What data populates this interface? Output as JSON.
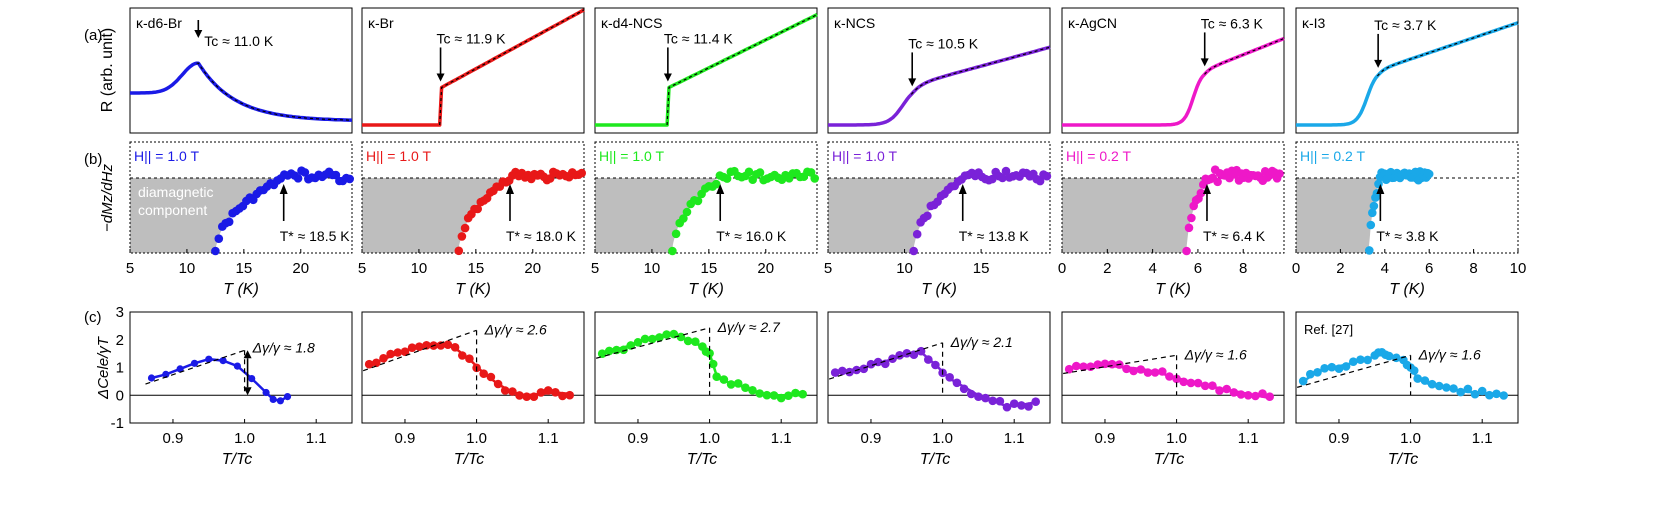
{
  "chart_data": {
    "type": "line",
    "rows": [
      {
        "label": "(a)",
        "ylabel": "R (arb. unit)"
      },
      {
        "label": "(b)",
        "ylabel": "−dMz/dHz"
      },
      {
        "label": "(c)",
        "ylabel": "ΔCele/γT",
        "yticks": [
          "-1",
          "0",
          "1",
          "2",
          "3"
        ],
        "ylim": [
          -1,
          3
        ]
      }
    ],
    "columns": [
      {
        "material": "κ-d6-Br",
        "color": "#1a1ae6",
        "tc_label": "Tc ≈ 11.0 K",
        "tc": 11.0,
        "field_label": "H|| = 1.0 T",
        "tstar_label": "T* ≈ 18.5 K",
        "tstar": 18.5,
        "b_xlim": [
          5,
          24.5
        ],
        "b_xticks": [
          5,
          10,
          15,
          20
        ],
        "b_xtick_labels": [
          "5",
          "10",
          "15",
          "20"
        ],
        "annotation": "diamagnetic component",
        "c_label": "Δγ/γ ≈ 1.8",
        "c_ratio": 1.8,
        "c_x": [
          0.87,
          0.89,
          0.91,
          0.93,
          0.95,
          0.97,
          0.99,
          1.01,
          1.03,
          1.04,
          1.05,
          1.06
        ],
        "c_y": [
          0.62,
          0.75,
          0.95,
          1.15,
          1.3,
          1.25,
          1.05,
          0.6,
          0.1,
          -0.15,
          -0.2,
          -0.05
        ]
      },
      {
        "material": "κ-Br",
        "color": "#e81818",
        "tc_label": "Tc ≈ 11.9 K",
        "tc": 11.9,
        "field_label": "H|| = 1.0 T",
        "tstar_label": "T* ≈ 18.0 K",
        "tstar": 18.0,
        "b_xlim": [
          5,
          24.5
        ],
        "b_xticks": [
          5,
          10,
          15,
          20
        ],
        "b_xtick_labels": [
          "5",
          "10",
          "15",
          "20"
        ],
        "c_label": "Δγ/γ ≈ 2.6",
        "c_ratio": 2.6,
        "c_x": [
          0.85,
          0.87,
          0.89,
          0.91,
          0.93,
          0.95,
          0.97,
          0.99,
          1.01,
          1.03,
          1.05,
          1.07,
          1.09,
          1.11,
          1.13
        ],
        "c_y": [
          1.1,
          1.3,
          1.5,
          1.7,
          1.8,
          1.85,
          1.7,
          1.3,
          0.8,
          0.4,
          0.1,
          0.0,
          0.05,
          0.1,
          0.05
        ]
      },
      {
        "material": "κ-d4-NCS",
        "color": "#1ee81e",
        "tc_label": "Tc ≈ 11.4 K",
        "tc": 11.4,
        "field_label": "H|| = 1.0 T",
        "tstar_label": "T* ≈ 16.0 K",
        "tstar": 16.0,
        "b_xlim": [
          5,
          24.5
        ],
        "b_xticks": [
          5,
          10,
          15,
          20
        ],
        "b_xtick_labels": [
          "5",
          "10",
          "15",
          "20"
        ],
        "c_label": "Δγ/γ ≈ 2.7",
        "c_ratio": 2.7,
        "c_x": [
          0.85,
          0.87,
          0.89,
          0.91,
          0.93,
          0.95,
          0.97,
          0.99,
          1.0,
          1.01,
          1.03,
          1.05,
          1.07,
          1.09,
          1.11,
          1.13
        ],
        "c_y": [
          1.55,
          1.65,
          1.8,
          2.0,
          2.15,
          2.2,
          2.0,
          1.75,
          1.5,
          0.7,
          0.4,
          0.3,
          0.05,
          0.0,
          0.0,
          0.0
        ]
      },
      {
        "material": "κ-NCS",
        "color": "#7a22d8",
        "tc_label": "Tc ≈ 10.5 K",
        "tc": 10.5,
        "field_label": "H|| = 1.0 T",
        "tstar_label": "T* ≈ 13.8 K",
        "tstar": 13.8,
        "b_xlim": [
          5,
          19.5
        ],
        "b_xticks": [
          5,
          10,
          15
        ],
        "b_xtick_labels": [
          "5",
          "10",
          "15"
        ],
        "c_label": "Δγ/γ ≈ 2.1",
        "c_ratio": 2.1,
        "c_x": [
          0.85,
          0.87,
          0.89,
          0.91,
          0.93,
          0.95,
          0.97,
          0.99,
          1.01,
          1.03,
          1.05,
          1.07,
          1.09,
          1.11,
          1.13
        ],
        "c_y": [
          0.8,
          0.9,
          1.0,
          1.15,
          1.3,
          1.45,
          1.55,
          1.1,
          0.6,
          0.3,
          0.0,
          -0.2,
          -0.4,
          -0.35,
          -0.25
        ]
      },
      {
        "material": "κ-AgCN",
        "color": "#ee18c8",
        "tc_label": "Tc ≈ 6.3 K",
        "tc": 6.3,
        "field_label": "H|| = 0.2 T",
        "tstar_label": "T* ≈ 6.4 K",
        "tstar": 6.4,
        "b_xlim": [
          0,
          9.8
        ],
        "b_xticks": [
          0,
          2,
          4,
          6,
          8
        ],
        "b_xtick_labels": [
          "0",
          "2",
          "4",
          "6",
          "8"
        ],
        "c_label": "Δγ/γ ≈ 1.6",
        "c_ratio": 1.6,
        "c_x": [
          0.85,
          0.87,
          0.89,
          0.91,
          0.93,
          0.95,
          0.97,
          0.99,
          1.01,
          1.03,
          1.05,
          1.07,
          1.09,
          1.11,
          1.13
        ],
        "c_y": [
          1.0,
          1.0,
          1.05,
          1.05,
          1.0,
          0.95,
          0.85,
          0.7,
          0.55,
          0.4,
          0.3,
          0.2,
          0.1,
          0.0,
          -0.1
        ]
      },
      {
        "material": "κ-I3",
        "color": "#1aa8e8",
        "tc_label": "Tc ≈ 3.7 K",
        "tc": 3.7,
        "field_label": "H|| = 0.2 T",
        "tstar_label": "T* ≈ 3.8 K",
        "tstar": 3.8,
        "b_xlim": [
          0,
          10
        ],
        "b_xticks": [
          0,
          2,
          4,
          6,
          8,
          10
        ],
        "b_xtick_labels": [
          "0",
          "2",
          "4",
          "6",
          "8",
          "10"
        ],
        "c_ref": "Ref. [27]",
        "c_label": "Δγ/γ ≈ 1.6",
        "c_ratio": 1.6,
        "c_x": [
          0.85,
          0.87,
          0.89,
          0.91,
          0.93,
          0.95,
          0.96,
          0.97,
          0.99,
          1.0,
          1.01,
          1.03,
          1.05,
          1.07,
          1.09,
          1.11,
          1.13
        ],
        "c_y": [
          0.5,
          0.85,
          1.0,
          1.1,
          1.25,
          1.4,
          1.5,
          1.45,
          1.3,
          1.0,
          0.6,
          0.35,
          0.25,
          0.15,
          0.1,
          0.05,
          0.05
        ]
      }
    ],
    "c_xticks": [
      0.9,
      1.0,
      1.1
    ],
    "c_xtick_labels": [
      "0.9",
      "1.0",
      "1.1"
    ],
    "c_xlim": [
      0.84,
      1.15
    ],
    "xlabel_b": "T (K)",
    "xlabel_c": "T/Tc"
  }
}
